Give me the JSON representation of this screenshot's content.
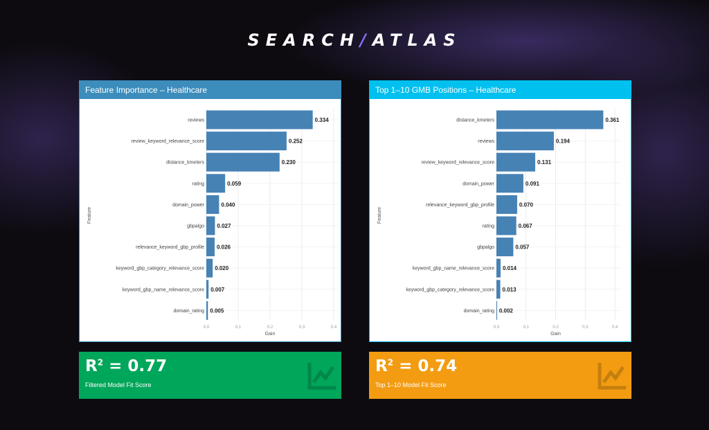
{
  "logo": {
    "part1": "SEARCH",
    "part2": "ATLAS"
  },
  "colors": {
    "bar": "#4682b4",
    "left_header": "#3c8dbc",
    "right_header": "#00c0ef",
    "kpi_left": "#00a65a",
    "kpi_right": "#f39c12"
  },
  "chart_data": [
    {
      "type": "bar",
      "orientation": "horizontal",
      "title": "Feature Importance – Healthcare",
      "xlabel": "Gain",
      "ylabel": "Feature",
      "xlim": [
        0,
        0.4
      ],
      "xticks": [
        "0.0",
        "0.1",
        "0.2",
        "0.3",
        "0.4"
      ],
      "grid": true,
      "categories": [
        "reviews",
        "review_keyword_relevance_score",
        "distance_kmeters",
        "rating",
        "domain_power",
        "gbpalgo",
        "relevance_keyword_gbp_profile",
        "keyword_gbp_category_relevance_score",
        "keyword_gbp_name_relevance_score",
        "domain_rating"
      ],
      "values": [
        0.334,
        0.252,
        0.23,
        0.059,
        0.04,
        0.027,
        0.026,
        0.02,
        0.007,
        0.005
      ],
      "labels": [
        "0.334",
        "0.252",
        "0.230",
        "0.059",
        "0.040",
        "0.027",
        "0.026",
        "0.020",
        "0.007",
        "0.005"
      ]
    },
    {
      "type": "bar",
      "orientation": "horizontal",
      "title": "Top 1–10 GMB Positions – Healthcare",
      "xlabel": "Gain",
      "ylabel": "Feature",
      "xlim": [
        0,
        0.4
      ],
      "xticks": [
        "0.0",
        "0.1",
        "0.2",
        "0.3",
        "0.4"
      ],
      "grid": true,
      "categories": [
        "distance_kmeters",
        "reviews",
        "review_keyword_relevance_score",
        "domain_power",
        "relevance_keyword_gbp_profile",
        "rating",
        "gbpalgo",
        "keyword_gbp_name_relevance_score",
        "keyword_gbp_category_relevance_score",
        "domain_rating"
      ],
      "values": [
        0.361,
        0.194,
        0.131,
        0.091,
        0.07,
        0.067,
        0.057,
        0.014,
        0.013,
        0.002
      ],
      "labels": [
        "0.361",
        "0.194",
        "0.131",
        "0.091",
        "0.070",
        "0.067",
        "0.057",
        "0.014",
        "0.013",
        "0.002"
      ]
    }
  ],
  "kpis": [
    {
      "prefix": "R",
      "sup": "2",
      "value": " = 0.77",
      "subtitle": "Filtered Model Fit Score",
      "icon": "line-chart-icon"
    },
    {
      "prefix": "R",
      "sup": "2",
      "value": " = 0.74",
      "subtitle": "Top 1–10 Model Fit Score",
      "icon": "line-chart-icon"
    }
  ]
}
